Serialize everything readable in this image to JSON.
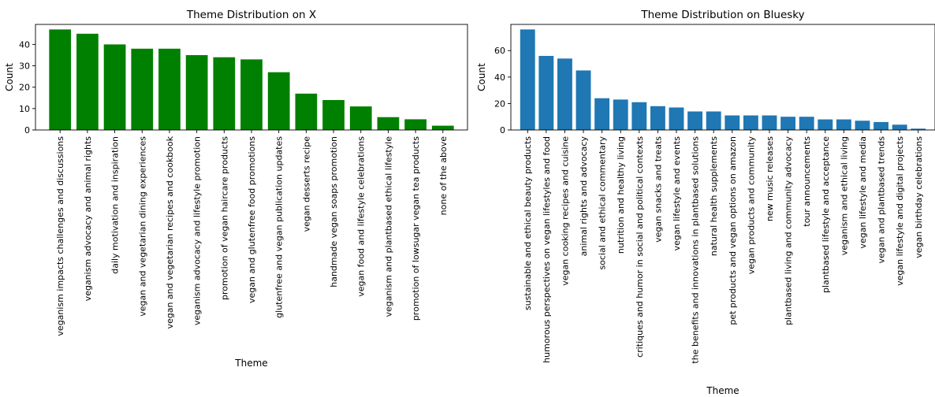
{
  "chart_data": [
    {
      "type": "bar",
      "title": "Theme Distribution on X",
      "xlabel": "Theme",
      "ylabel": "Count",
      "ylim": [
        0,
        49.35
      ],
      "yticks": [
        0,
        10,
        20,
        30,
        40
      ],
      "color": "#008000",
      "categories": [
        "veganism impacts challenges and discussions",
        "veganism advocacy and animal rights",
        "daily motivation and inspiration",
        "vegan and vegetarian dining experiences",
        "vegan and vegetarian recipes and cookbook",
        "veganism advocacy and lifestyle promotion",
        "promotion of vegan haircare products",
        "vegan and glutenfree food promotions",
        "glutenfree and vegan publication updates",
        "vegan desserts recipe",
        "handmade vegan soaps promotion",
        "vegan food and lifestyle celebrations",
        "veganism and plantbased ethical lifestyle",
        "promotion of lowsugar vegan tea products",
        "none of the above"
      ],
      "values": [
        47,
        45,
        40,
        38,
        38,
        35,
        34,
        33,
        27,
        17,
        14,
        11,
        6,
        5,
        2
      ],
      "grid": false
    },
    {
      "type": "bar",
      "title": "Theme Distribution on Bluesky",
      "xlabel": "Theme",
      "ylabel": "Count",
      "ylim": [
        0,
        79.8
      ],
      "yticks": [
        0,
        20,
        40,
        60
      ],
      "color": "#1f77b4",
      "categories": [
        "sustainable and ethical beauty products",
        "humorous perspectives on vegan lifestyles and food",
        "vegan cooking recipes and cuisine",
        "animal rights and advocacy",
        "social and ethical commentary",
        "nutrition and healthy living",
        "critiques and humor in social and political contexts",
        "vegan snacks and treats",
        "vegan lifestyle and events",
        "the benefits and innovations in plantbased solutions",
        "natural health supplements",
        "pet products and vegan options on amazon",
        "vegan products and community",
        "new music releases",
        "plantbased living and community advocacy",
        "tour announcements",
        "plantbased lifestyle and acceptance",
        "veganism and ethical living",
        "vegan lifestyle and media",
        "vegan and plantbased trends",
        "vegan lifestyle and digital projects",
        "vegan birthday celebrations"
      ],
      "values": [
        76,
        56,
        54,
        45,
        24,
        23,
        21,
        18,
        17,
        14,
        14,
        11,
        11,
        11,
        10,
        10,
        8,
        8,
        7,
        6,
        4,
        1
      ],
      "grid": false
    }
  ]
}
